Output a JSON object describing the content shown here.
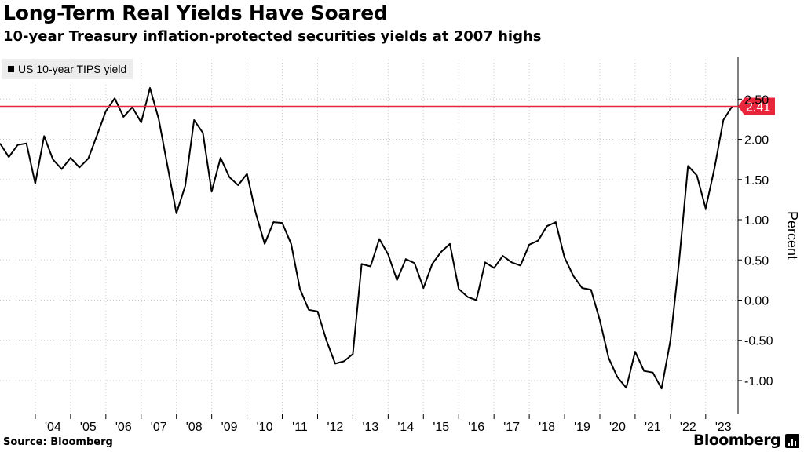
{
  "header": {
    "title": "Long-Term Real Yields Have Soared",
    "subtitle": "10-year Treasury inflation-protected securities yields at 2007 highs"
  },
  "footer": {
    "source": "Source: Bloomberg",
    "brand": "Bloomberg"
  },
  "colors": {
    "line": "#000000",
    "marker": "#e8253b",
    "grid": "#c8c8c8",
    "legend_bg": "#ececec"
  },
  "chart_data": {
    "type": "line",
    "title": "Long-Term Real Yields Have Soared",
    "subtitle": "10-year Treasury inflation-protected securities yields at 2007 highs",
    "ylabel": "Percent",
    "xlabel": "",
    "ylim": [
      -1.42,
      3.03
    ],
    "yticks": [
      -1.0,
      -0.5,
      0.0,
      0.5,
      1.0,
      1.5,
      2.0,
      2.5
    ],
    "ytick_labels": [
      "-1.00",
      "-0.50",
      "0.00",
      "0.50",
      "1.00",
      "1.50",
      "2.00",
      "2.50"
    ],
    "xlim": [
      "2003-01",
      "2023-12"
    ],
    "xticks": [
      "2004-07",
      "2005-07",
      "2006-07",
      "2007-07",
      "2008-07",
      "2009-07",
      "2010-07",
      "2011-07",
      "2012-07",
      "2013-07",
      "2014-07",
      "2015-07",
      "2016-07",
      "2017-07",
      "2018-07",
      "2019-07",
      "2020-07",
      "2021-07",
      "2022-07",
      "2023-07"
    ],
    "xtick_labels": [
      "'04",
      "'05",
      "'06",
      "'07",
      "'08",
      "'09",
      "'10",
      "'11",
      "'12",
      "'13",
      "'14",
      "'15",
      "'16",
      "'17",
      "'18",
      "'19",
      "'20",
      "'21",
      "'22",
      "'23"
    ],
    "grid": true,
    "legend_position": "top-left",
    "reference_line": {
      "value": 2.41,
      "label": "2.41"
    },
    "series": [
      {
        "name": "US 10-year TIPS yield",
        "x": [
          "2003-01",
          "2003-04",
          "2003-07",
          "2003-10",
          "2004-01",
          "2004-04",
          "2004-07",
          "2004-10",
          "2005-01",
          "2005-04",
          "2005-07",
          "2005-10",
          "2006-01",
          "2006-04",
          "2006-07",
          "2006-10",
          "2007-01",
          "2007-04",
          "2007-07",
          "2007-10",
          "2008-01",
          "2008-04",
          "2008-07",
          "2008-10",
          "2009-01",
          "2009-04",
          "2009-07",
          "2009-10",
          "2010-01",
          "2010-04",
          "2010-07",
          "2010-10",
          "2011-01",
          "2011-04",
          "2011-07",
          "2011-10",
          "2012-01",
          "2012-04",
          "2012-07",
          "2012-10",
          "2013-01",
          "2013-04",
          "2013-07",
          "2013-10",
          "2014-01",
          "2014-04",
          "2014-07",
          "2014-10",
          "2015-01",
          "2015-04",
          "2015-07",
          "2015-10",
          "2016-01",
          "2016-04",
          "2016-07",
          "2016-10",
          "2017-01",
          "2017-04",
          "2017-07",
          "2017-10",
          "2018-01",
          "2018-04",
          "2018-07",
          "2018-10",
          "2019-01",
          "2019-04",
          "2019-07",
          "2019-10",
          "2020-01",
          "2020-04",
          "2020-07",
          "2020-10",
          "2021-01",
          "2021-04",
          "2021-07",
          "2021-10",
          "2022-01",
          "2022-04",
          "2022-07",
          "2022-10",
          "2023-01",
          "2023-04",
          "2023-07",
          "2023-10"
        ],
        "values": [
          1.95,
          1.78,
          1.93,
          1.95,
          1.45,
          2.04,
          1.75,
          1.63,
          1.77,
          1.65,
          1.76,
          2.05,
          2.35,
          2.51,
          2.28,
          2.4,
          2.21,
          2.64,
          2.25,
          1.66,
          1.08,
          1.42,
          2.24,
          2.08,
          1.35,
          1.77,
          1.53,
          1.43,
          1.57,
          1.08,
          0.7,
          0.97,
          0.96,
          0.7,
          0.14,
          -0.12,
          -0.14,
          -0.5,
          -0.79,
          -0.76,
          -0.67,
          0.45,
          0.42,
          0.76,
          0.57,
          0.25,
          0.51,
          0.46,
          0.15,
          0.45,
          0.6,
          0.7,
          0.14,
          0.04,
          0.0,
          0.47,
          0.4,
          0.55,
          0.47,
          0.43,
          0.69,
          0.74,
          0.92,
          0.97,
          0.53,
          0.3,
          0.15,
          0.13,
          -0.25,
          -0.72,
          -0.96,
          -1.09,
          -0.64,
          -0.88,
          -0.9,
          -1.1,
          -0.5,
          0.5,
          1.67,
          1.55,
          1.14,
          1.64,
          2.24,
          2.41
        ]
      }
    ]
  }
}
